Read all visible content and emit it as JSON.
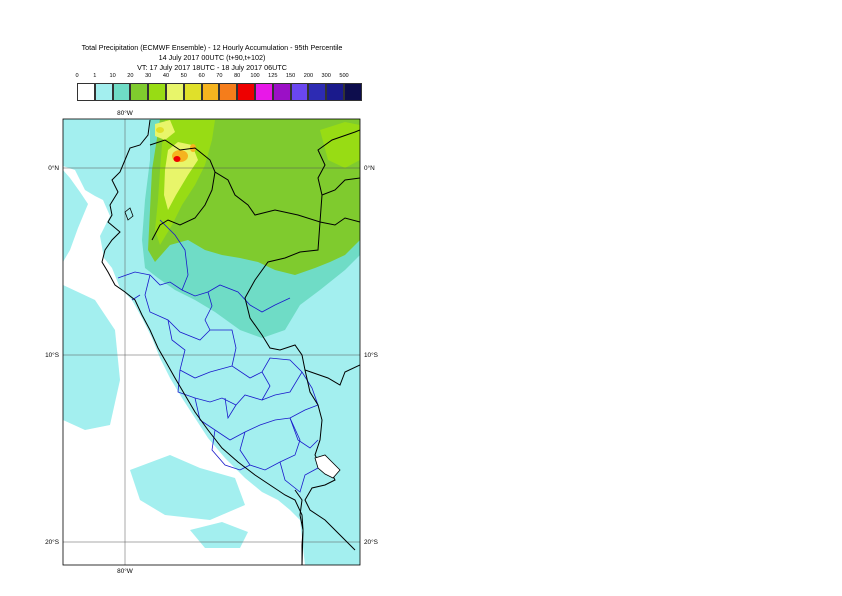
{
  "title": {
    "line1": "Total Precipitation (ECMWF Ensemble) - 12 Hourly Accumulation - 95th Percentile",
    "line2": "14 July 2017 00UTC (t+90,t+102)",
    "line3": "VT: 17 July 2017 18UTC - 18 July 2017 06UTC"
  },
  "legend": {
    "labels": [
      "0",
      "1",
      "10",
      "20",
      "30",
      "40",
      "50",
      "60",
      "70",
      "80",
      "100",
      "125",
      "150",
      "200",
      "300",
      "500"
    ],
    "colors": [
      "#ffffff",
      "#a3efef",
      "#6fdcc6",
      "#7fcb2e",
      "#98dc14",
      "#e8f56a",
      "#e0e02a",
      "#f5b41f",
      "#f57d1b",
      "#ee0000",
      "#e818e8",
      "#9b10c6",
      "#6a47f0",
      "#2d2bb3",
      "#1a1a8c",
      "#0d0d4d"
    ]
  },
  "map": {
    "region": "Peru",
    "grid_lines": {
      "longitudes": [
        "80°W"
      ],
      "latitudes": [
        "0°N",
        "10°S",
        "20°S"
      ]
    },
    "axis_labels": {
      "lon_top": "80°W",
      "lon_bottom": "80°W",
      "lat_left": [
        "0°N",
        "10°S",
        "20°S"
      ],
      "lat_right": [
        "0°N",
        "10°S",
        "20°S"
      ]
    },
    "colors": {
      "ocean_background": "#a3efef",
      "land_low": "#a3efef",
      "band_10_20": "#6fdcc6",
      "band_20_30": "#7fcb2e",
      "band_30_40": "#98dc14",
      "band_40_50": "#e8f56a",
      "band_60_80": "#f5b41f",
      "band_80_100": "#ee0000",
      "coastline": "#000000",
      "admin_borders": "#1a1acc",
      "gridline": "#555555"
    }
  }
}
